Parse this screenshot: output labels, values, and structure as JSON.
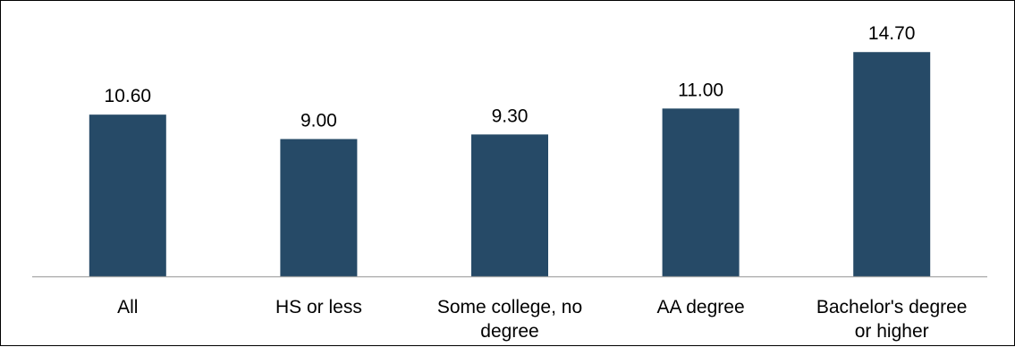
{
  "chart_data": {
    "type": "bar",
    "categories": [
      [
        "All"
      ],
      [
        "HS or less"
      ],
      [
        "Some college, no",
        "degree"
      ],
      [
        "AA degree"
      ],
      [
        "Bachelor's degree",
        "or higher"
      ]
    ],
    "values": [
      10.6,
      9.0,
      9.3,
      11.0,
      14.7
    ],
    "value_labels": [
      "10.60",
      "9.00",
      "9.30",
      "11.00",
      "14.70"
    ],
    "title": "",
    "xlabel": "",
    "ylabel": "",
    "ylim": [
      0,
      17
    ],
    "grid": false,
    "legend": "none",
    "bar_color": "#264a67",
    "axis_color": "#a6a6a6"
  }
}
